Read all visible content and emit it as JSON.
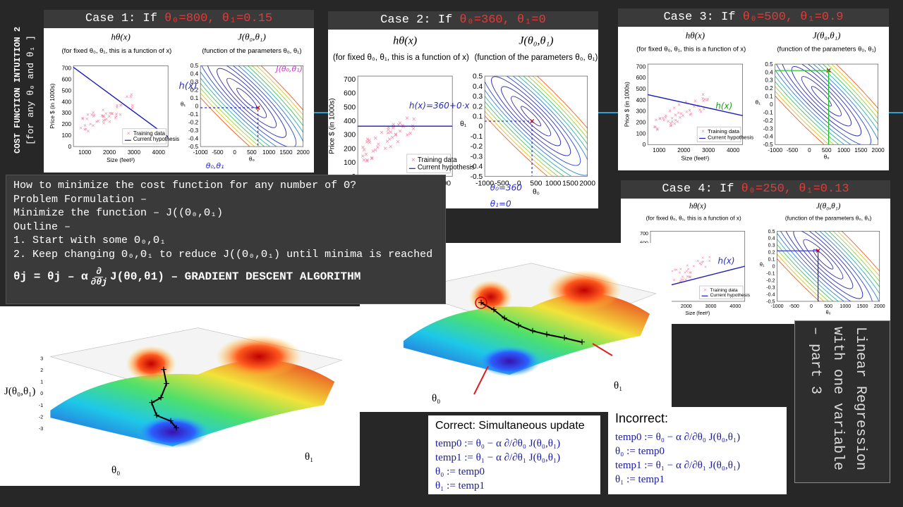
{
  "sidebar": {
    "title": "COST FUNCTION INTUITION 2",
    "subtitle": "[for any θ₀ and θ₁ ]"
  },
  "plot_labels": {
    "h_title": "hθ(x)",
    "h_subtitle": "(for fixed θ₀, θ₁, this is a function of x)",
    "j_title": "J(θ₀,θ₁)",
    "j_subtitle": "(function of the parameters θ₀, θ₁)",
    "y_label": "Price $ (in 1000s)",
    "x_label": "Size (feet²)",
    "legend": [
      "Training data",
      "Current hypothesis"
    ],
    "price_ticks": [
      0,
      100,
      200,
      300,
      400,
      500,
      600,
      700
    ],
    "size_ticks": [
      1000,
      2000,
      3000,
      4000
    ],
    "theta0_ticks": [
      -1000,
      -500,
      0,
      500,
      1000,
      1500,
      2000
    ],
    "theta1_ticks": [
      0.5,
      0.4,
      0.3,
      0.2,
      0.1,
      0,
      -0.1,
      -0.2,
      -0.3,
      -0.4,
      -0.5
    ],
    "theta0_label": "θ₀",
    "theta1_label": "θ₁"
  },
  "cases": [
    {
      "label": "Case 1: If ",
      "condition": "θ₀=800, θ₁=0.15",
      "notes": [
        "h(x)",
        "θ₀,θ₁",
        "J(θ₀,θ₁)"
      ]
    },
    {
      "label": "Case 2: If ",
      "condition": "θ₀=360, θ₁=0",
      "notes": [
        "h(x)=360+0·x",
        "θ₀=360",
        "θ₁=0"
      ]
    },
    {
      "label": "Case 3: If ",
      "condition": "θ₀=500, θ₁=0.9",
      "notes": [
        "h(x)"
      ]
    },
    {
      "label": "Case 4: If ",
      "condition": "θ₀=250, θ₁=0.13",
      "notes": [
        "h(x)"
      ]
    }
  ],
  "outline": {
    "question": "How to minimize the cost function for any number of Θ?",
    "formulation_heading": "Problem Formulation –",
    "formulation": "Minimize the function – J((Θ₀,Θ₁)",
    "outline_heading": "Outline –",
    "steps": [
      "1. Start with some Θ₀,Θ₁",
      "2. Keep changing Θ₀,Θ₁ to reduce J((Θ₀,Θ₁) until minima is reached"
    ],
    "formula": {
      "lhs": "θj = θj – α",
      "num": "∂",
      "den": "∂θj",
      "rhs": "J(θ0,θ1) – GRADIENT DESCENT ALGORITHM"
    }
  },
  "surfaces": {
    "z_label": "J(θ₀,θ₁)",
    "x_label": "θ₀",
    "y_label": "θ₁",
    "z_ticks": [
      3,
      2,
      1,
      0,
      -1,
      -2,
      -3
    ]
  },
  "correct": {
    "title": "Correct: Simultaneous update",
    "lines": [
      "temp0 := θ₀ − α ∂/∂θ₀ J(θ₀,θ₁)",
      "temp1 := θ₁ − α ∂/∂θ₁ J(θ₀,θ₁)",
      "θ₀ := temp0",
      "θ₁ := temp1"
    ]
  },
  "incorrect": {
    "title": "Incorrect:",
    "lines": [
      "temp0 := θ₀ − α ∂/∂θ₀ J(θ₀,θ₁)",
      "θ₀ := temp0",
      "temp1 := θ₁ − α ∂/∂θ₁ J(θ₀,θ₁)",
      "θ₁ := temp1"
    ]
  },
  "side_title": "Linear Regression with one variable – part 3"
}
